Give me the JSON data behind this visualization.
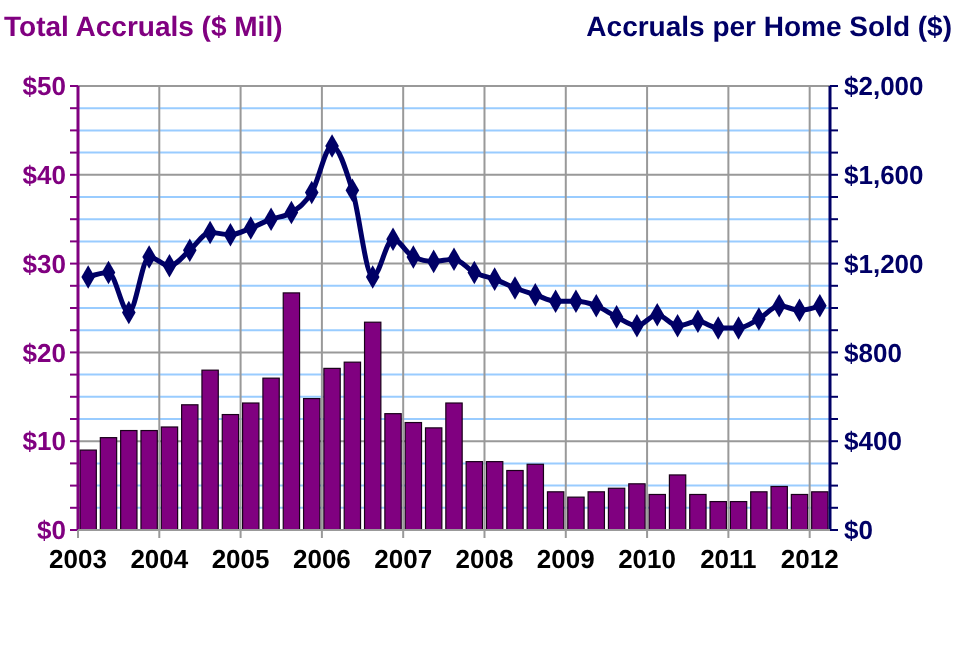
{
  "chart_data": {
    "type": "bar",
    "ylabel": "Total Accruals ($ Mil)",
    "y2label": "Accruals per Home Sold ($)",
    "xlim": [
      2003,
      2012.25
    ],
    "xticks": [
      2003,
      2004,
      2005,
      2006,
      2007,
      2008,
      2009,
      2010,
      2011,
      2012
    ],
    "ylim": [
      0,
      50
    ],
    "yticks": [
      {
        "value": 0,
        "label": "$0"
      },
      {
        "value": 2.5,
        "label": null
      },
      {
        "value": 5,
        "label": null
      },
      {
        "value": 7.5,
        "label": null
      },
      {
        "value": 10,
        "label": "$10"
      },
      {
        "value": 12.5,
        "label": null
      },
      {
        "value": 15,
        "label": null
      },
      {
        "value": 17.5,
        "label": null
      },
      {
        "value": 20,
        "label": "$20"
      },
      {
        "value": 22.5,
        "label": null
      },
      {
        "value": 25,
        "label": null
      },
      {
        "value": 27.5,
        "label": null
      },
      {
        "value": 30,
        "label": "$30"
      },
      {
        "value": 32.5,
        "label": null
      },
      {
        "value": 35,
        "label": null
      },
      {
        "value": 37.5,
        "label": null
      },
      {
        "value": 40,
        "label": "$40"
      },
      {
        "value": 42.5,
        "label": null
      },
      {
        "value": 45,
        "label": null
      },
      {
        "value": 47.5,
        "label": null
      },
      {
        "value": 50,
        "label": "$50"
      }
    ],
    "y2lim": [
      0,
      2000
    ],
    "y2ticks": [
      {
        "value": 0,
        "label": "$0"
      },
      {
        "value": 100,
        "label": null
      },
      {
        "value": 200,
        "label": null
      },
      {
        "value": 300,
        "label": null
      },
      {
        "value": 400,
        "label": "$400"
      },
      {
        "value": 500,
        "label": null
      },
      {
        "value": 600,
        "label": null
      },
      {
        "value": 700,
        "label": null
      },
      {
        "value": 800,
        "label": "$800"
      },
      {
        "value": 900,
        "label": null
      },
      {
        "value": 1000,
        "label": null
      },
      {
        "value": 1100,
        "label": null
      },
      {
        "value": 1200,
        "label": "$1,200"
      },
      {
        "value": 1300,
        "label": null
      },
      {
        "value": 1400,
        "label": null
      },
      {
        "value": 1500,
        "label": null
      },
      {
        "value": 1600,
        "label": "$1,600"
      },
      {
        "value": 1700,
        "label": null
      },
      {
        "value": 1800,
        "label": null
      },
      {
        "value": 1900,
        "label": null
      },
      {
        "value": 2000,
        "label": "$2,000"
      }
    ],
    "grid": true,
    "x": [
      2003.125,
      2003.375,
      2003.625,
      2003.875,
      2004.125,
      2004.375,
      2004.625,
      2004.875,
      2005.125,
      2005.375,
      2005.625,
      2005.875,
      2006.125,
      2006.375,
      2006.625,
      2006.875,
      2007.125,
      2007.375,
      2007.625,
      2007.875,
      2008.125,
      2008.375,
      2008.625,
      2008.875,
      2009.125,
      2009.375,
      2009.625,
      2009.875,
      2010.125,
      2010.375,
      2010.625,
      2010.875,
      2011.125,
      2011.375,
      2011.625,
      2011.875,
      2012.125
    ],
    "series": [
      {
        "color": "#800080",
        "values": [
          9.0,
          10.4,
          11.2,
          11.2,
          11.6,
          14.1,
          18.0,
          13.0,
          14.3,
          17.1,
          26.7,
          14.8,
          18.2,
          18.9,
          23.4,
          13.1,
          12.1,
          11.5,
          14.3,
          7.7,
          7.7,
          6.7,
          7.4,
          4.3,
          3.7,
          4.3,
          4.7,
          5.2,
          4.0,
          6.2,
          4.0,
          3.2,
          3.2,
          4.3,
          4.9,
          4.0,
          4.3
        ]
      },
      {
        "type": "line",
        "axis": "y2",
        "color": "#000066",
        "marker": "diamond",
        "line_style": "solid",
        "values": [
          1140,
          1160,
          980,
          1230,
          1190,
          1260,
          1340,
          1330,
          1360,
          1400,
          1430,
          1520,
          1730,
          1530,
          1140,
          1310,
          1230,
          1210,
          1220,
          1160,
          1130,
          1090,
          1060,
          1030,
          1030,
          1010,
          960,
          920,
          970,
          920,
          940,
          910,
          910,
          950,
          1010,
          990,
          1010
        ]
      }
    ]
  }
}
